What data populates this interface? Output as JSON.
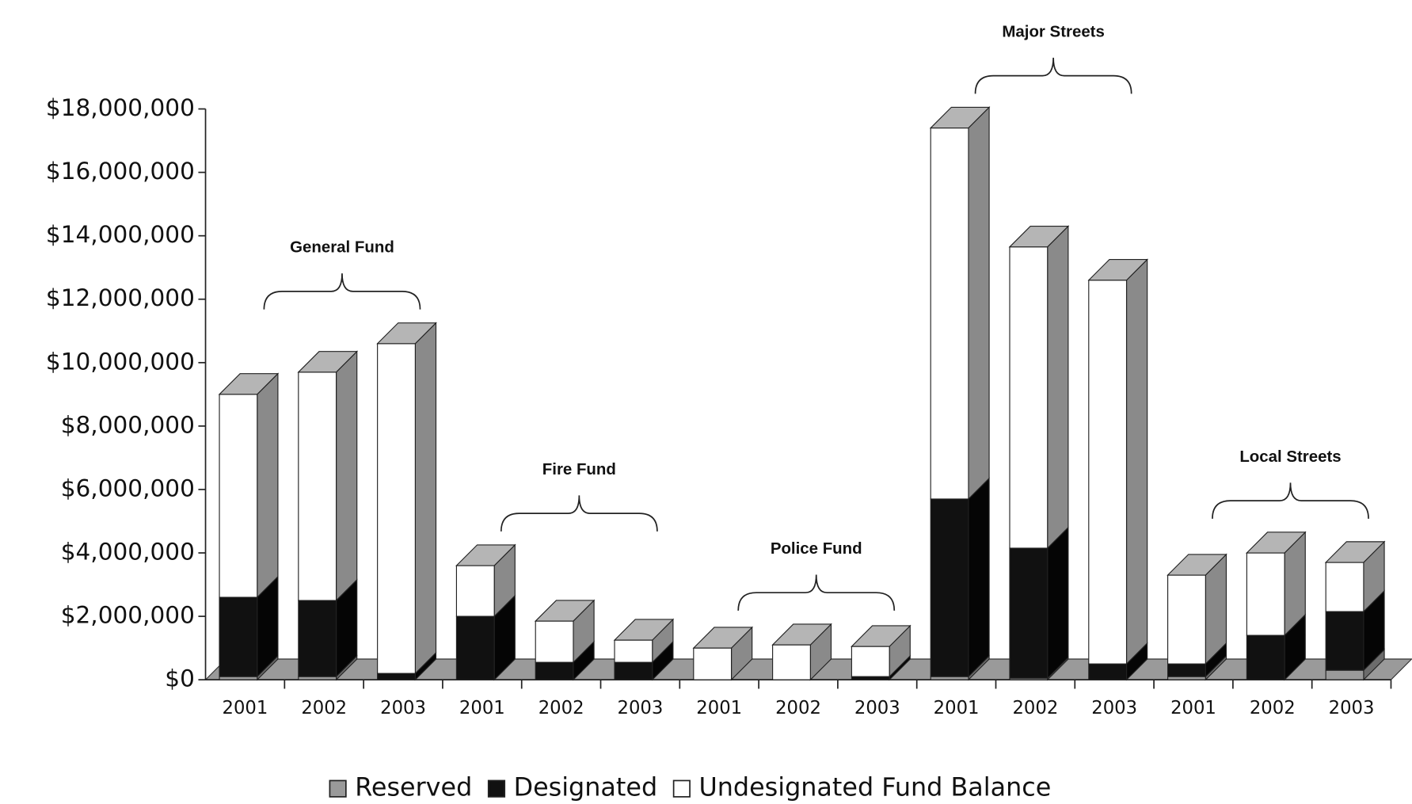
{
  "chart_data": {
    "type": "bar3d_stacked",
    "categories": [
      "2001",
      "2002",
      "2003",
      "2001",
      "2002",
      "2003",
      "2001",
      "2002",
      "2003",
      "2001",
      "2002",
      "2003",
      "2001",
      "2002",
      "2003"
    ],
    "group_labels": [
      "General  Fund",
      "Fire Fund",
      "Police Fund",
      "Major Streets",
      "Local Streets"
    ],
    "series": [
      {
        "name": "Reserved",
        "color": "#9a9a9a",
        "values": [
          0.1,
          0.1,
          0,
          0,
          0,
          0,
          0,
          0,
          0,
          0.1,
          0.05,
          0,
          0.1,
          0,
          0.3
        ]
      },
      {
        "name": "Designated",
        "color": "#111111",
        "values": [
          2.5,
          2.4,
          0.2,
          2.0,
          0.55,
          0.55,
          0,
          0,
          0.1,
          5.6,
          4.1,
          0.5,
          0.4,
          1.4,
          1.85
        ]
      },
      {
        "name": "Undesignated Fund Balance",
        "color": "#ffffff",
        "values": [
          6.4,
          7.2,
          10.4,
          1.6,
          1.3,
          0.7,
          1.0,
          1.1,
          0.95,
          11.7,
          9.5,
          12.1,
          2.8,
          2.6,
          1.55
        ]
      }
    ],
    "ylim": [
      0,
      18
    ],
    "yticks": [
      {
        "value": 0,
        "label": "$0"
      },
      {
        "value": 2,
        "label": "$2,000,000"
      },
      {
        "value": 4,
        "label": "$4,000,000"
      },
      {
        "value": 6,
        "label": "$6,000,000"
      },
      {
        "value": 8,
        "label": "$8,000,000"
      },
      {
        "value": 10,
        "label": "$10,000,000"
      },
      {
        "value": 12,
        "label": "$12,000,000"
      },
      {
        "value": 14,
        "label": "$14,000,000"
      },
      {
        "value": 16,
        "label": "$16,000,000"
      },
      {
        "value": 18,
        "label": "$18,000,000"
      }
    ]
  }
}
